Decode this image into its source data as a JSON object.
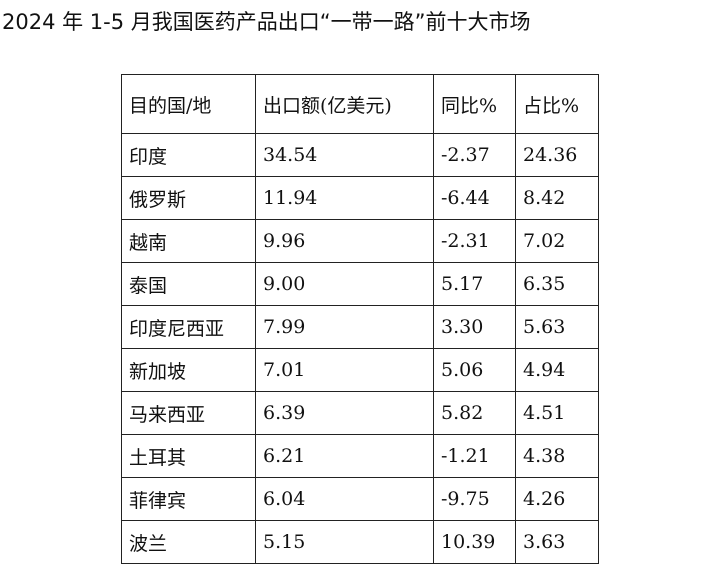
{
  "header": {
    "title": "2024 年 1-5 月我国医药产品出口“一带一路”前十大市场"
  },
  "table": {
    "columns": [
      "目的国/地",
      "出口额(亿美元)",
      "同比%",
      "占比%"
    ],
    "rows": [
      [
        "印度",
        "34.54",
        "-2.37",
        "24.36"
      ],
      [
        "俄罗斯",
        "11.94",
        "-6.44",
        "8.42"
      ],
      [
        "越南",
        "9.96",
        "-2.31",
        "7.02"
      ],
      [
        "泰国",
        "9.00",
        "5.17",
        "6.35"
      ],
      [
        "印度尼西亚",
        "7.99",
        "3.30",
        "5.63"
      ],
      [
        "新加坡",
        "7.01",
        "5.06",
        "4.94"
      ],
      [
        "马来西亚",
        "6.39",
        "5.82",
        "4.51"
      ],
      [
        "土耳其",
        "6.21",
        "-1.21",
        "4.38"
      ],
      [
        "菲律宾",
        "6.04",
        "-9.75",
        "4.26"
      ],
      [
        "波兰",
        "5.15",
        "10.39",
        "3.63"
      ]
    ]
  }
}
